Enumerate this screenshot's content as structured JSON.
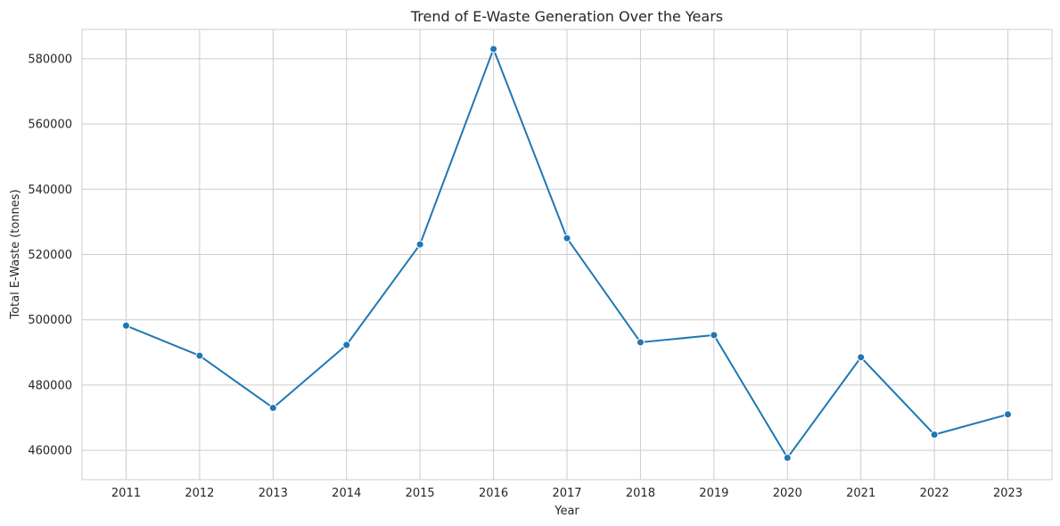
{
  "chart_data": {
    "type": "line",
    "title": "Trend of E-Waste Generation Over the Years",
    "xlabel": "Year",
    "ylabel": "Total E-Waste (tonnes)",
    "categories": [
      "2011",
      "2012",
      "2013",
      "2014",
      "2015",
      "2016",
      "2017",
      "2018",
      "2019",
      "2020",
      "2021",
      "2022",
      "2023"
    ],
    "series": [
      {
        "values": [
          498200,
          489000,
          473000,
          492300,
          523100,
          583000,
          525000,
          493100,
          495300,
          457700,
          488500,
          464800,
          471000
        ],
        "color": "#1f77b4",
        "marker": "circle"
      }
    ],
    "ylim": [
      451000,
      589000
    ],
    "yticks": [
      460000,
      480000,
      500000,
      520000,
      540000,
      560000,
      580000
    ],
    "grid": true,
    "style": "whitegrid"
  }
}
